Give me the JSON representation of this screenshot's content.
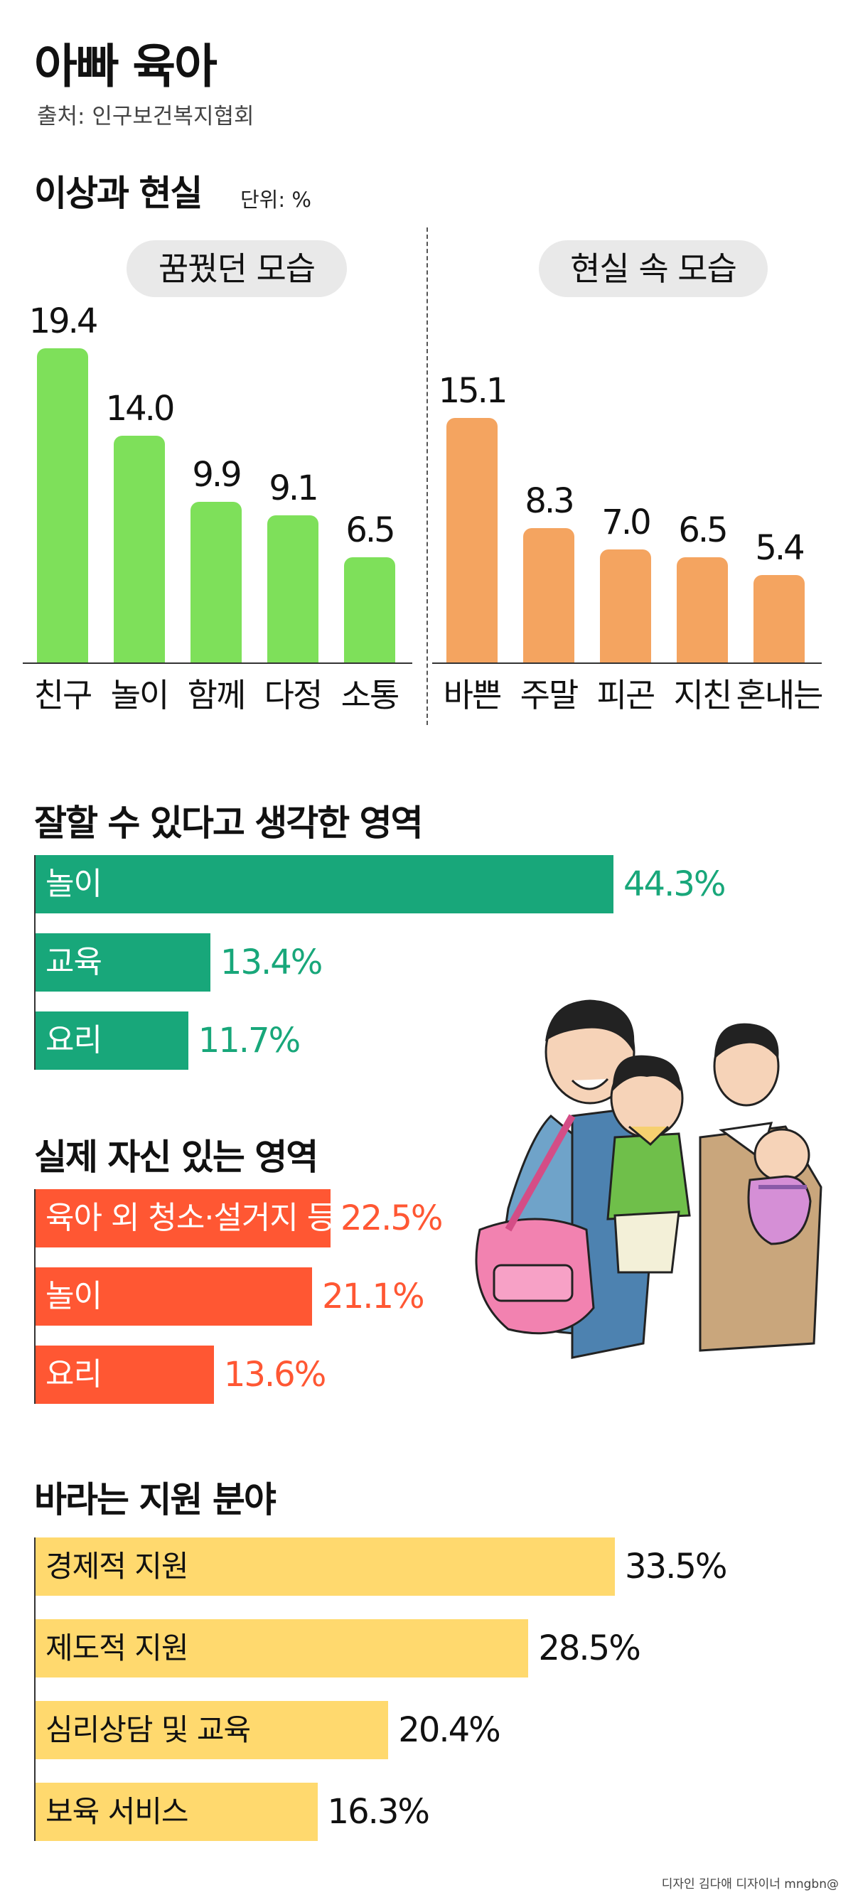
{
  "title": "아빠 육아",
  "source": "출처: 인구보건복지협회",
  "credit": "디자인 김다애 디자이너 mngbn@",
  "colors": {
    "green_bar": "#7ee05a",
    "orange_bar": "#f4a460",
    "teal_bar": "#18a77a",
    "teal_text": "#18a77a",
    "red_bar": "#ff5733",
    "red_text": "#ff5733",
    "yellow_bar": "#ffd96e",
    "pill_bg": "#e9e9e9"
  },
  "chart_data": [
    {
      "type": "bar",
      "title": "이상과 현실",
      "unit": "단위: %",
      "group": "꿈꿨던 모습",
      "categories": [
        "친구",
        "놀이",
        "함께",
        "다정",
        "소통"
      ],
      "values": [
        19.4,
        14.0,
        9.9,
        9.1,
        6.5
      ],
      "value_labels": [
        "19.4",
        "14.0",
        "9.9",
        "9.1",
        "6.5"
      ],
      "ylim": [
        0,
        20
      ],
      "grid": false
    },
    {
      "type": "bar",
      "title": "이상과 현실",
      "group": "현실 속 모습",
      "categories": [
        "바쁜",
        "주말",
        "피곤",
        "지친",
        "혼내는"
      ],
      "values": [
        15.1,
        8.3,
        7.0,
        6.5,
        5.4
      ],
      "value_labels": [
        "15.1",
        "8.3",
        "7.0",
        "6.5",
        "5.4"
      ],
      "ylim": [
        0,
        20
      ],
      "grid": false
    },
    {
      "type": "bar",
      "orientation": "horizontal",
      "title": "잘할 수 있다고 생각한 영역",
      "categories": [
        "놀이",
        "교육",
        "요리"
      ],
      "values": [
        44.3,
        13.4,
        11.7
      ],
      "value_labels": [
        "44.3%",
        "13.4%",
        "11.7%"
      ]
    },
    {
      "type": "bar",
      "orientation": "horizontal",
      "title": "실제 자신 있는 영역",
      "categories": [
        "육아 외 청소·설거지 등",
        "놀이",
        "요리"
      ],
      "values": [
        22.5,
        21.1,
        13.6
      ],
      "value_labels": [
        "22.5%",
        "21.1%",
        "13.6%"
      ]
    },
    {
      "type": "bar",
      "orientation": "horizontal",
      "title": "바라는 지원 분야",
      "categories": [
        "경제적 지원",
        "제도적 지원",
        "심리상담 및 교육",
        "보육 서비스"
      ],
      "values": [
        33.5,
        28.5,
        20.4,
        16.3
      ],
      "value_labels": [
        "33.5%",
        "28.5%",
        "20.4%",
        "16.3%"
      ]
    }
  ]
}
